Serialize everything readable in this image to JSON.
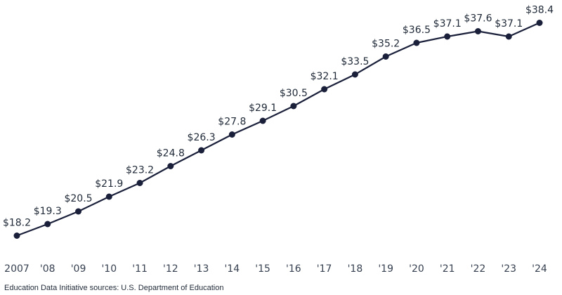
{
  "chart_data": {
    "type": "line",
    "categories": [
      "2007",
      "'08",
      "'09",
      "'10",
      "'11",
      "'12",
      "'13",
      "'14",
      "'15",
      "'16",
      "'17",
      "'18",
      "'19",
      "'20",
      "'21",
      "'22",
      "'23",
      "'24"
    ],
    "values": [
      18.2,
      19.3,
      20.5,
      21.9,
      23.2,
      24.8,
      26.3,
      27.8,
      29.1,
      30.5,
      32.1,
      33.5,
      35.2,
      36.5,
      37.1,
      37.6,
      37.1,
      38.4
    ],
    "value_labels": [
      "$18.2",
      "$19.3",
      "$20.5",
      "$21.9",
      "$23.2",
      "$24.8",
      "$26.3",
      "$27.8",
      "$29.1",
      "$30.5",
      "$32.1",
      "$33.5",
      "$35.2",
      "$36.5",
      "$37.1",
      "$37.6",
      "$37.1",
      "$38.4"
    ],
    "ylim": [
      17,
      39
    ],
    "grid": false,
    "line_color": "#1a1f3a"
  },
  "source": "Education Data Initiative sources: U.S. Department of Education"
}
